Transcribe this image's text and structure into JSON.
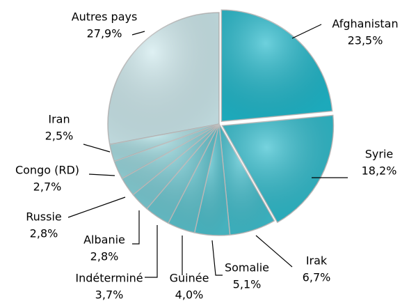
{
  "chart_data": {
    "type": "pie",
    "categories": [
      "Afghanistan",
      "Syrie",
      "Irak",
      "Somalie",
      "Guinée",
      "Indéterminé",
      "Albanie",
      "Russie",
      "Congo (RD)",
      "Iran",
      "Autres pays"
    ],
    "values": [
      23.5,
      18.2,
      6.7,
      5.1,
      4.0,
      3.7,
      2.8,
      2.8,
      2.7,
      2.5,
      27.9
    ],
    "value_labels": [
      "23,5%",
      "18,2%",
      "6,7%",
      "5,1%",
      "4,0%",
      "3,7%",
      "2,8%",
      "2,8%",
      "2,7%",
      "2,5%",
      "27,9%"
    ],
    "colors": [
      "#1fb8cb",
      "#2dbccd",
      "#3fbecd",
      "#4cc0cd",
      "#5bc4cf",
      "#6ac8d2",
      "#7acdd6",
      "#88d2d9",
      "#98d7dd",
      "#a8dde2",
      "#cde9ed"
    ]
  }
}
